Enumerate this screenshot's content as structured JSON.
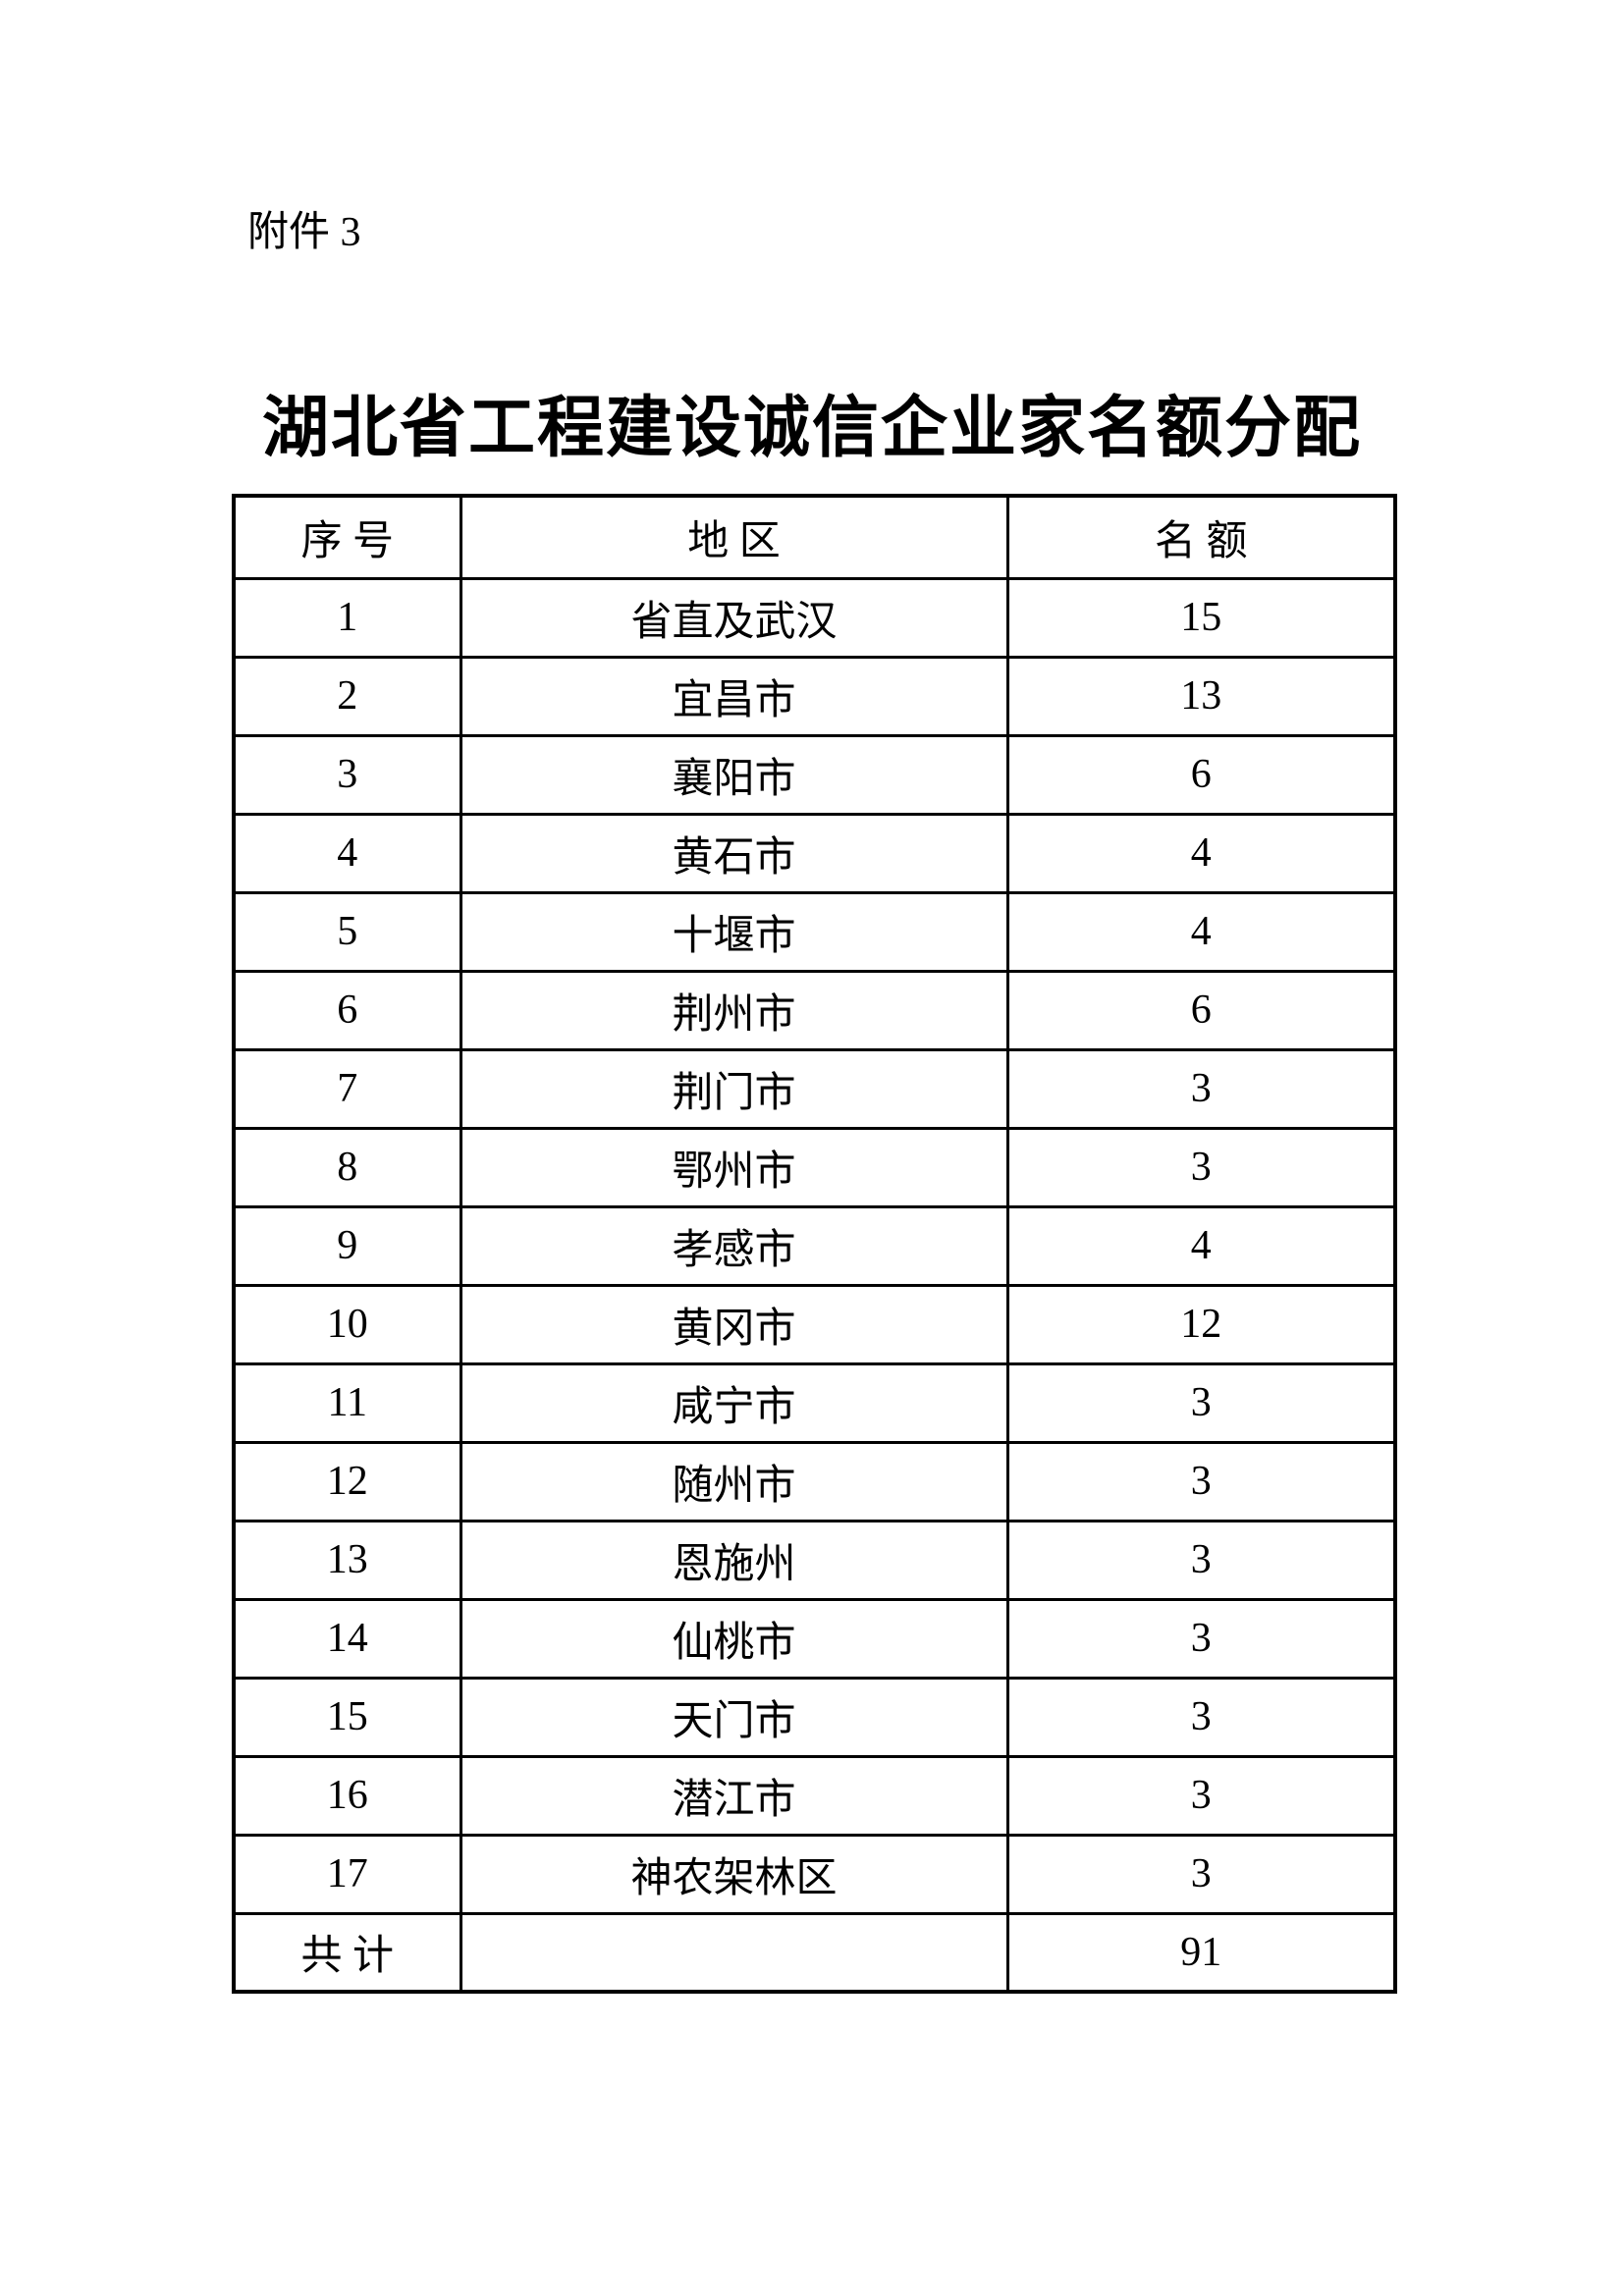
{
  "document": {
    "attachment_label": "附件 3",
    "title": "湖北省工程建设诚信企业家名额分配"
  },
  "table": {
    "headers": {
      "no": "序 号",
      "region": "地 区",
      "quota": "名 额"
    },
    "rows": [
      {
        "no": "1",
        "region": "省直及武汉",
        "quota": "15"
      },
      {
        "no": "2",
        "region": "宜昌市",
        "quota": "13"
      },
      {
        "no": "3",
        "region": "襄阳市",
        "quota": "6"
      },
      {
        "no": "4",
        "region": "黄石市",
        "quota": "4"
      },
      {
        "no": "5",
        "region": "十堰市",
        "quota": "4"
      },
      {
        "no": "6",
        "region": "荆州市",
        "quota": "6"
      },
      {
        "no": "7",
        "region": "荆门市",
        "quota": "3"
      },
      {
        "no": "8",
        "region": "鄂州市",
        "quota": "3"
      },
      {
        "no": "9",
        "region": "孝感市",
        "quota": "4"
      },
      {
        "no": "10",
        "region": "黄冈市",
        "quota": "12"
      },
      {
        "no": "11",
        "region": "咸宁市",
        "quota": "3"
      },
      {
        "no": "12",
        "region": "随州市",
        "quota": "3"
      },
      {
        "no": "13",
        "region": "恩施州",
        "quota": "3"
      },
      {
        "no": "14",
        "region": "仙桃市",
        "quota": "3"
      },
      {
        "no": "15",
        "region": "天门市",
        "quota": "3"
      },
      {
        "no": "16",
        "region": "潜江市",
        "quota": "3"
      },
      {
        "no": "17",
        "region": "神农架林区",
        "quota": "3"
      },
      {
        "no": "共 计",
        "region": "",
        "quota": "91"
      }
    ]
  },
  "colors": {
    "text": "#000000",
    "border": "#000000",
    "page_background": "#ffffff"
  }
}
